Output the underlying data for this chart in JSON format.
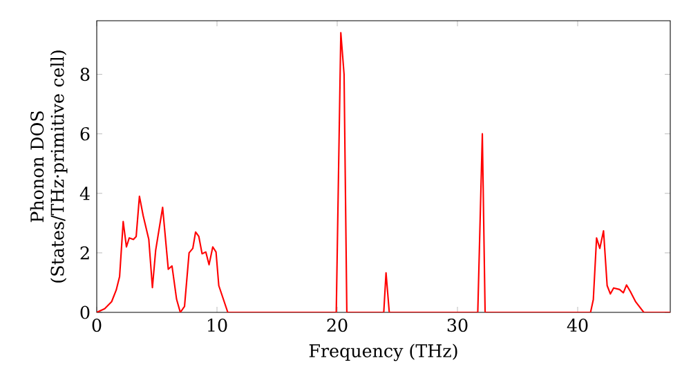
{
  "chart_data": {
    "type": "line",
    "xlabel": "Frequency (THz)",
    "ylabel": "Phonon DOS\n(States/THz·primitive cell)",
    "xlim": [
      0,
      47.7
    ],
    "ylim": [
      0,
      9.8
    ],
    "xticks": [
      0,
      10,
      20,
      30,
      40
    ],
    "yticks": [
      0,
      2,
      4,
      6,
      8
    ],
    "grid": false,
    "marker": "none",
    "line_style": "solid",
    "series": [
      {
        "color": "#ff0000",
        "x": [
          0,
          0.66,
          1.24,
          1.62,
          1.9,
          2.2,
          2.47,
          2.7,
          3.05,
          3.28,
          3.55,
          3.86,
          4.33,
          4.63,
          4.9,
          5.48,
          5.95,
          6.26,
          6.64,
          6.95,
          7.3,
          7.68,
          7.99,
          8.22,
          8.49,
          8.76,
          9.07,
          9.34,
          9.65,
          9.92,
          10.15,
          10.9,
          19.92,
          20.3,
          20.57,
          20.8,
          23.87,
          24.06,
          24.33,
          31.69,
          32.07,
          32.3,
          41.07,
          41.3,
          41.57,
          41.84,
          42.15,
          42.45,
          42.72,
          42.99,
          43.48,
          43.8,
          44.06,
          44.37,
          44.83,
          45.5,
          47.7
        ],
        "values": [
          0,
          0.12,
          0.36,
          0.75,
          1.2,
          3.05,
          2.2,
          2.5,
          2.45,
          2.55,
          3.9,
          3.25,
          2.45,
          0.83,
          2.08,
          3.53,
          1.45,
          1.56,
          0.44,
          0,
          0.2,
          2.0,
          2.15,
          2.7,
          2.55,
          1.97,
          2.03,
          1.6,
          2.2,
          2.03,
          0.9,
          0,
          0,
          9.4,
          8.0,
          0,
          0,
          1.33,
          0,
          0,
          6.0,
          0,
          0,
          0.43,
          2.5,
          2.15,
          2.74,
          0.9,
          0.62,
          0.82,
          0.77,
          0.66,
          0.92,
          0.71,
          0.35,
          0,
          0
        ]
      }
    ]
  }
}
